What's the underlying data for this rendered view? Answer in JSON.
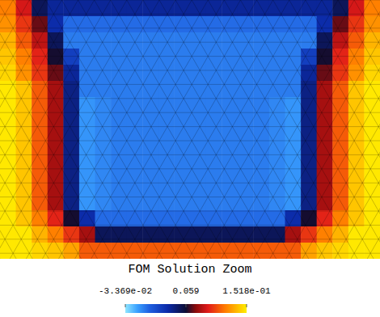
{
  "chart_data": {
    "type": "heatmap",
    "title": "FOM Solution Zoom",
    "tick_labels": false,
    "cells": [
      [
        0.12,
        0.09,
        0.05,
        0.035,
        0.035,
        0.035,
        0.035,
        0.035,
        0.035,
        0.035,
        0.035,
        0.035,
        0.035,
        0.035,
        0.035,
        0.035,
        0.035,
        0.035,
        0.035,
        0.035,
        0.035,
        0.05,
        0.09,
        0.12
      ],
      [
        0.125,
        0.1,
        0.07,
        0.03,
        0.0,
        0.0,
        0.0,
        0.0,
        0.0,
        0.0,
        0.0,
        0.0,
        0.0,
        0.0,
        0.0,
        0.0,
        0.0,
        0.0,
        0.0,
        0.0,
        0.03,
        0.07,
        0.1,
        0.125
      ],
      [
        0.135,
        0.11,
        0.085,
        0.05,
        -0.005,
        -0.005,
        -0.005,
        -0.005,
        -0.005,
        -0.005,
        -0.005,
        -0.005,
        -0.005,
        -0.005,
        -0.005,
        -0.005,
        -0.005,
        -0.005,
        -0.005,
        -0.005,
        0.05,
        0.085,
        0.11,
        0.135
      ],
      [
        0.14,
        0.12,
        0.095,
        0.06,
        0.02,
        -0.005,
        -0.005,
        -0.005,
        -0.005,
        -0.005,
        -0.005,
        -0.005,
        -0.005,
        -0.005,
        -0.005,
        -0.005,
        -0.005,
        -0.005,
        -0.005,
        0.02,
        0.06,
        0.095,
        0.12,
        0.14
      ],
      [
        0.145,
        0.125,
        0.1,
        0.07,
        0.035,
        -0.005,
        -0.005,
        -0.005,
        -0.005,
        -0.005,
        -0.005,
        -0.005,
        -0.005,
        -0.005,
        -0.005,
        -0.005,
        -0.005,
        -0.005,
        -0.005,
        0.035,
        0.07,
        0.1,
        0.125,
        0.145
      ],
      [
        0.15,
        0.14,
        0.11,
        0.08,
        0.04,
        -0.005,
        -0.005,
        -0.005,
        -0.005,
        -0.005,
        -0.005,
        -0.005,
        -0.005,
        -0.005,
        -0.005,
        -0.005,
        -0.005,
        -0.005,
        -0.005,
        0.04,
        0.08,
        0.11,
        0.14,
        0.15
      ],
      [
        0.15,
        0.14,
        0.11,
        0.08,
        0.04,
        -0.012,
        -0.008,
        -0.005,
        -0.005,
        -0.005,
        -0.005,
        -0.005,
        -0.005,
        -0.005,
        -0.005,
        -0.005,
        -0.005,
        -0.008,
        -0.012,
        0.04,
        0.08,
        0.11,
        0.14,
        0.15
      ],
      [
        0.15,
        0.14,
        0.11,
        0.08,
        0.04,
        -0.012,
        -0.008,
        -0.005,
        -0.005,
        -0.005,
        -0.005,
        -0.005,
        -0.005,
        -0.005,
        -0.005,
        -0.005,
        -0.005,
        -0.008,
        -0.012,
        0.04,
        0.08,
        0.11,
        0.14,
        0.15
      ],
      [
        0.15,
        0.14,
        0.11,
        0.08,
        0.04,
        -0.012,
        -0.008,
        -0.005,
        -0.005,
        -0.005,
        -0.005,
        -0.005,
        -0.005,
        -0.005,
        -0.005,
        -0.005,
        -0.005,
        -0.008,
        -0.012,
        0.04,
        0.08,
        0.11,
        0.14,
        0.15
      ],
      [
        0.15,
        0.14,
        0.11,
        0.08,
        0.04,
        -0.012,
        -0.008,
        -0.005,
        -0.005,
        -0.005,
        -0.005,
        -0.005,
        -0.005,
        -0.005,
        -0.005,
        -0.005,
        -0.005,
        -0.008,
        -0.012,
        0.04,
        0.08,
        0.11,
        0.14,
        0.15
      ],
      [
        0.15,
        0.14,
        0.11,
        0.08,
        0.04,
        -0.012,
        -0.008,
        -0.005,
        -0.005,
        -0.005,
        -0.005,
        -0.005,
        -0.005,
        -0.005,
        -0.005,
        -0.005,
        -0.005,
        -0.008,
        -0.012,
        0.04,
        0.08,
        0.11,
        0.14,
        0.15
      ],
      [
        0.15,
        0.14,
        0.11,
        0.08,
        0.04,
        -0.012,
        -0.008,
        -0.005,
        -0.005,
        -0.005,
        -0.005,
        -0.005,
        -0.005,
        -0.005,
        -0.005,
        -0.005,
        -0.005,
        -0.008,
        -0.012,
        0.04,
        0.08,
        0.11,
        0.14,
        0.15
      ],
      [
        0.15,
        0.14,
        0.11,
        0.08,
        0.04,
        -0.012,
        -0.008,
        -0.005,
        -0.005,
        -0.005,
        -0.005,
        -0.005,
        -0.005,
        -0.005,
        -0.005,
        -0.005,
        -0.005,
        -0.008,
        -0.012,
        0.04,
        0.08,
        0.11,
        0.14,
        0.15
      ],
      [
        0.15,
        0.14,
        0.12,
        0.095,
        0.06,
        0.03,
        0.0,
        0.0,
        0.0,
        0.0,
        0.0,
        0.0,
        0.0,
        0.0,
        0.0,
        0.0,
        0.0,
        0.0,
        0.03,
        0.06,
        0.095,
        0.12,
        0.14,
        0.15
      ],
      [
        0.15,
        0.15,
        0.135,
        0.12,
        0.1,
        0.08,
        0.05,
        0.05,
        0.05,
        0.05,
        0.05,
        0.05,
        0.05,
        0.05,
        0.05,
        0.05,
        0.05,
        0.05,
        0.08,
        0.1,
        0.12,
        0.135,
        0.15,
        0.15
      ],
      [
        0.15,
        0.15,
        0.145,
        0.14,
        0.13,
        0.11,
        0.11,
        0.11,
        0.11,
        0.11,
        0.11,
        0.11,
        0.11,
        0.11,
        0.11,
        0.11,
        0.11,
        0.11,
        0.11,
        0.13,
        0.14,
        0.145,
        0.15,
        0.15
      ]
    ],
    "colorbar": {
      "range": [
        -0.03369,
        0.1518
      ],
      "ticks": [
        {
          "value": -0.03369,
          "label": "-3.369e-02"
        },
        0.059,
        {
          "value": 0.1518,
          "label": "1.518e-01"
        }
      ]
    }
  }
}
